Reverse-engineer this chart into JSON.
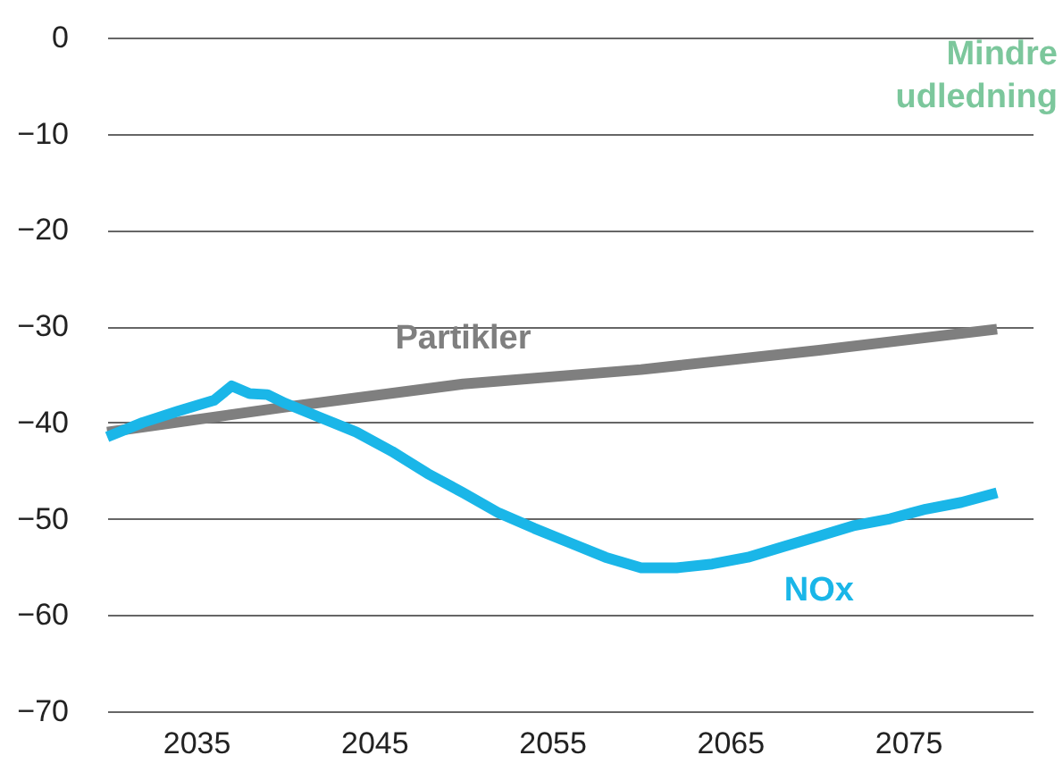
{
  "chart_data": {
    "type": "line",
    "x": [
      2030,
      2032,
      2034,
      2036,
      2037,
      2038,
      2039,
      2040,
      2042,
      2044,
      2046,
      2048,
      2050,
      2052,
      2054,
      2056,
      2058,
      2060,
      2062,
      2064,
      2066,
      2068,
      2070,
      2072,
      2074,
      2076,
      2078,
      2080
    ],
    "series": [
      {
        "name": "Partikler",
        "color": "#7f7f7f",
        "x": [
          2030,
          2040,
          2050,
          2060,
          2070,
          2080
        ],
        "values": [
          -41,
          -38.4,
          -36,
          -34.5,
          -32.5,
          -30.3
        ]
      },
      {
        "name": "NOx",
        "color": "#1ab6e8",
        "values": [
          -41.5,
          -40,
          -38.8,
          -37.7,
          -36.2,
          -37,
          -37.1,
          -38,
          -39.5,
          -41,
          -43,
          -45.3,
          -47.3,
          -49.4,
          -51,
          -52.5,
          -54,
          -55.1,
          -55.1,
          -54.7,
          -54,
          -52.9,
          -51.8,
          -50.7,
          -50,
          -49,
          -48.3,
          -47.3
        ]
      }
    ],
    "xlim": [
      2030,
      2082
    ],
    "xticks": [
      2035,
      2045,
      2055,
      2065,
      2075
    ],
    "ylim": [
      -70,
      0
    ],
    "yticks": [
      0,
      -10,
      -20,
      -30,
      -40,
      -50,
      -60,
      -70
    ],
    "grid": "y",
    "legend": false,
    "line_style": "solid",
    "marker": "none",
    "annotations": [
      "Mindre udledning"
    ]
  }
}
